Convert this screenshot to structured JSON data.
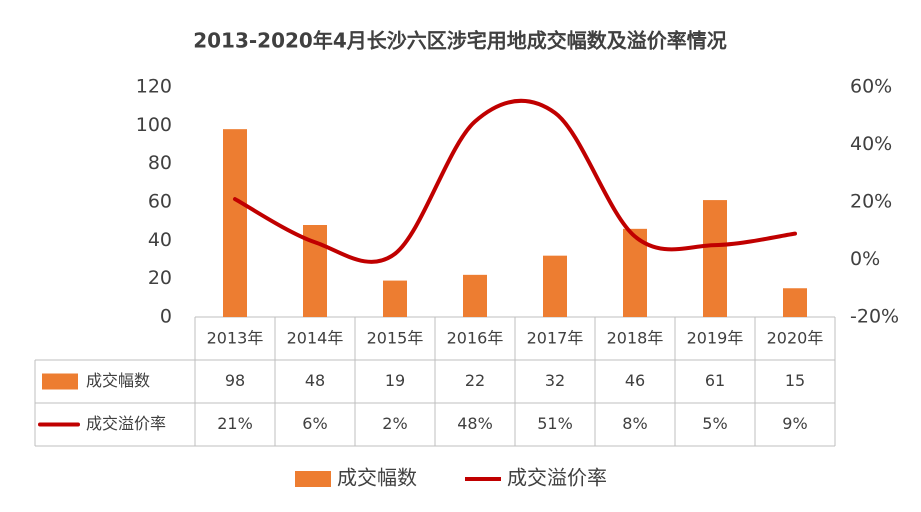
{
  "chart_data": {
    "type": "bar-line",
    "title": "2013-2020年4月长沙六区涉宅用地成交幅数及溢价率情况",
    "categories": [
      "2013年",
      "2014年",
      "2015年",
      "2016年",
      "2017年",
      "2018年",
      "2019年",
      "2020年"
    ],
    "series": [
      {
        "name": "成交幅数",
        "type": "bar",
        "color": "#ED7D31",
        "values": [
          98,
          48,
          19,
          22,
          32,
          46,
          61,
          15
        ]
      },
      {
        "name": "成交溢价率",
        "type": "line",
        "axis": "y2",
        "color": "#C00000",
        "smooth": true,
        "values": [
          21,
          6,
          2,
          48,
          51,
          8,
          5,
          9
        ],
        "value_labels": [
          "21%",
          "6%",
          "2%",
          "48%",
          "51%",
          "8%",
          "5%",
          "9%"
        ]
      }
    ],
    "ylim": [
      0,
      120
    ],
    "yticks": [
      0,
      20,
      40,
      60,
      80,
      100,
      120
    ],
    "y2lim": [
      -20,
      60
    ],
    "y2ticks": [
      {
        "value": -20,
        "label": "-20%"
      },
      {
        "value": 0,
        "label": "0%"
      },
      {
        "value": 20,
        "label": "20%"
      },
      {
        "value": 40,
        "label": "40%"
      },
      {
        "value": 60,
        "label": "60%"
      }
    ],
    "grid": false,
    "legend": "bottom",
    "data_table": true
  }
}
